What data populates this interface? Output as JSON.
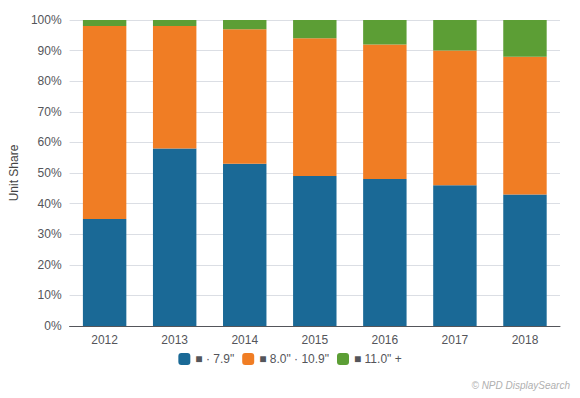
{
  "chart_data": {
    "type": "bar",
    "stacked": true,
    "categories": [
      "2012",
      "2013",
      "2014",
      "2015",
      "2016",
      "2017",
      "2018"
    ],
    "series": [
      {
        "name": "■ · 7.9\"",
        "color": "#1a6996",
        "values": [
          35,
          58,
          53,
          49,
          48,
          46,
          43
        ]
      },
      {
        "name": "■ 8.0\" · 10.9\"",
        "color": "#f07d24",
        "values": [
          63,
          40,
          44,
          45,
          44,
          44,
          45
        ]
      },
      {
        "name": "■ 11.0\" +",
        "color": "#5c9e35",
        "values": [
          2,
          2,
          3,
          6,
          8,
          10,
          12
        ]
      }
    ],
    "ylabel": "Unit Share",
    "ylim": [
      0,
      100
    ],
    "yticks": [
      {
        "value": 0,
        "label": "0%"
      },
      {
        "value": 10,
        "label": "10%"
      },
      {
        "value": 20,
        "label": "20%"
      },
      {
        "value": 30,
        "label": "30%"
      },
      {
        "value": 40,
        "label": "40%"
      },
      {
        "value": 50,
        "label": "50%"
      },
      {
        "value": 60,
        "label": "60%"
      },
      {
        "value": 70,
        "label": "70%"
      },
      {
        "value": 80,
        "label": "80%"
      },
      {
        "value": 90,
        "label": "90%"
      },
      {
        "value": 100,
        "label": "100%"
      }
    ],
    "grid": true,
    "legend": "bottom",
    "annotations": [
      "© NPD DisplaySearch"
    ]
  }
}
